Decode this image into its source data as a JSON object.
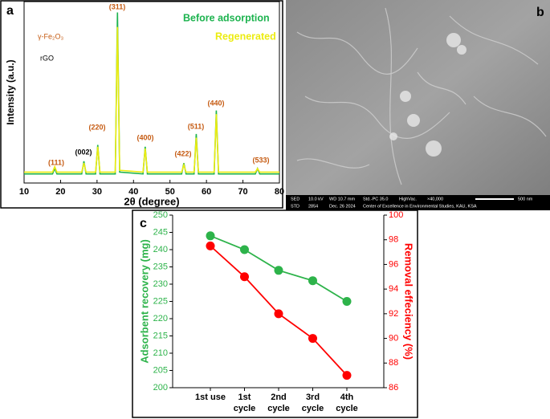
{
  "chart_data": [
    {
      "type": "spectrum",
      "label": "a",
      "xlabel": "2θ (degree)",
      "ylabel": "Intensity (a.u.)",
      "x": [
        10,
        17.8,
        18.4,
        19,
        25.8,
        26.4,
        27,
        29.6,
        30.2,
        30.8,
        35,
        35.6,
        36.2,
        42.6,
        43.2,
        43.8,
        53.2,
        53.8,
        54.4,
        56.6,
        57.2,
        57.8,
        62.1,
        62.7,
        63.3,
        73.4,
        74,
        74.6,
        80
      ],
      "xlim": [
        10,
        80
      ],
      "xticks": [
        10,
        20,
        30,
        40,
        50,
        60,
        70,
        80
      ],
      "ylim": [
        0,
        100
      ],
      "series": [
        {
          "name": "Before adsorption",
          "color": "#1db34f",
          "values": [
            5,
            5,
            8,
            5,
            5,
            12,
            5,
            5,
            21,
            5,
            5,
            94,
            6,
            5,
            20,
            5,
            5,
            11,
            5,
            5,
            27,
            5,
            5,
            40,
            5,
            5,
            8,
            5,
            5
          ]
        },
        {
          "name": "Regenerated",
          "color": "#ecec10",
          "values": [
            6,
            6,
            9,
            6,
            6,
            11,
            6,
            6,
            20,
            6,
            6,
            86,
            7,
            6,
            19,
            6,
            6,
            10,
            6,
            6,
            25,
            6,
            6,
            38,
            6,
            6,
            8,
            6,
            6
          ]
        }
      ],
      "annotations": [
        "γ-Fe₂O₃",
        "rGO"
      ],
      "peak_labels": [
        "(111)",
        "(002)",
        "(220)",
        "(311)",
        "(400)",
        "(422)",
        "(511)",
        "(440)",
        "(533)"
      ]
    },
    {
      "type": "image",
      "label": "b",
      "info": [
        "SED",
        "10.0 kV",
        "WD 10.7 mm",
        "Std.-PC 35.0",
        "HighVac.",
        "×40,000",
        "500 nm",
        "STD",
        "2854",
        "Dec. 26 2024",
        "Center of Excellence in Environmental Studies, KAU, KSA"
      ]
    },
    {
      "type": "line",
      "label": "c",
      "categories": [
        "1st use",
        "1st cycle",
        "2nd cycle",
        "3rd cycle",
        "4th cycle"
      ],
      "ylabel": "Adsorbent recovery (mg)",
      "y2label": "Removal effeciency (%)",
      "ylim": [
        200,
        250
      ],
      "yticks": [
        200,
        205,
        210,
        215,
        220,
        225,
        230,
        235,
        240,
        245,
        250
      ],
      "y2lim": [
        86,
        100
      ],
      "y2ticks": [
        86,
        88,
        90,
        92,
        94,
        96,
        98,
        100
      ],
      "series": [
        {
          "color": "#2db34a",
          "values": [
            244,
            240,
            234,
            231,
            225
          ]
        },
        {
          "color": "#ff0000",
          "axis": "y2",
          "values": [
            97.5,
            95,
            92,
            90,
            87
          ]
        }
      ]
    }
  ]
}
